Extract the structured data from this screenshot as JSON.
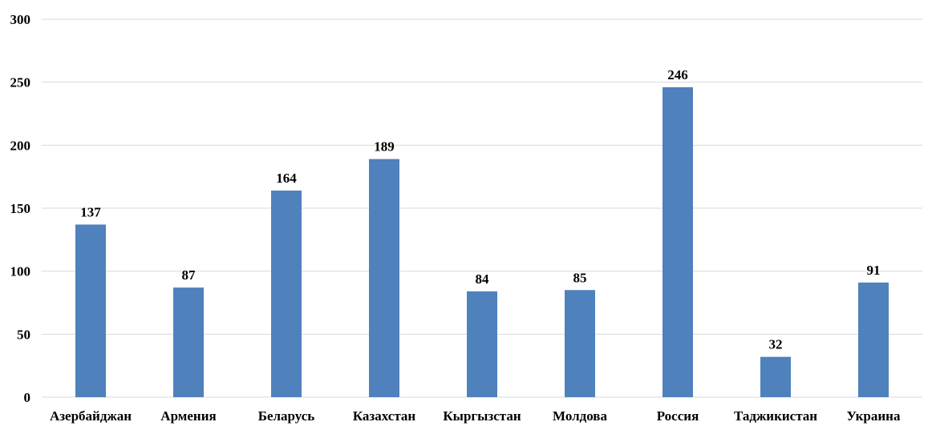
{
  "chart_data": {
    "type": "bar",
    "title": "",
    "xlabel": "",
    "ylabel": "",
    "categories": [
      "Азербайджан",
      "Армения",
      "Беларусь",
      "Казахстан",
      "Кыргызстан",
      "Молдова",
      "Россия",
      "Таджикистан",
      "Украина"
    ],
    "values": [
      137,
      87,
      164,
      189,
      84,
      85,
      246,
      32,
      91
    ],
    "ylim": [
      0,
      300
    ],
    "yticks": [
      0,
      50,
      100,
      150,
      200,
      250,
      300
    ],
    "grid": true,
    "legend": "none",
    "bar_color": "#4f81bd"
  }
}
